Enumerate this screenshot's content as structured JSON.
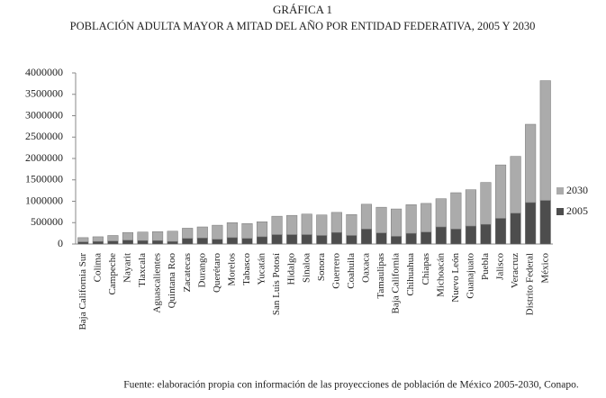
{
  "chart_data": {
    "type": "bar",
    "stacked": true,
    "title": "GRÁFICA 1",
    "subtitle": "POBLACIÓN ADULTA  MAYOR A MITAD DEL AÑO  POR ENTIDAD FEDERATIVA, 2005 Y 2030",
    "source": "Fuente: elaboración propia con información de las proyecciones de población de México 2005-2030, Conapo.",
    "categories": [
      "Baja California Sur",
      "Colima",
      "Campeche",
      "Nayarit",
      "Tlaxcala",
      "Aguascalientes",
      "Quintana Roo",
      "Zacatecas",
      "Durango",
      "Querétaro",
      "Morelos",
      "Tabasco",
      "Yucatán",
      "San Luis Potosí",
      "Hidalgo",
      "Sinaloa",
      "Sonora",
      "Guerrero",
      "Coahuila",
      "Oaxaca",
      "Tamaulipas",
      "Baja California",
      "Chihuahua",
      "Chiapas",
      "Michoacán",
      "Nuevo León",
      "Guanajuato",
      "Puebla",
      "Jalisco",
      "Veracruz",
      "Distrito Federal",
      "México"
    ],
    "series": [
      {
        "name": "2005",
        "color": "#4d4d4d",
        "values": [
          50000,
          60000,
          70000,
          90000,
          80000,
          80000,
          60000,
          130000,
          140000,
          110000,
          150000,
          130000,
          170000,
          220000,
          220000,
          220000,
          200000,
          270000,
          200000,
          350000,
          260000,
          180000,
          250000,
          280000,
          400000,
          350000,
          420000,
          460000,
          600000,
          720000,
          970000,
          1020000
        ]
      },
      {
        "name": "2030",
        "color": "#ababab",
        "values": [
          100000,
          110000,
          130000,
          180000,
          200000,
          210000,
          240000,
          240000,
          260000,
          330000,
          350000,
          350000,
          350000,
          430000,
          450000,
          480000,
          480000,
          470000,
          490000,
          580000,
          600000,
          640000,
          670000,
          670000,
          660000,
          850000,
          850000,
          980000,
          1250000,
          1330000,
          1830000,
          2800000
        ]
      }
    ],
    "ylim": [
      0,
      4000000
    ],
    "yticks": [
      0,
      500000,
      1000000,
      1500000,
      2000000,
      2500000,
      3000000,
      3500000,
      4000000
    ],
    "grid": false,
    "legend": "right"
  }
}
